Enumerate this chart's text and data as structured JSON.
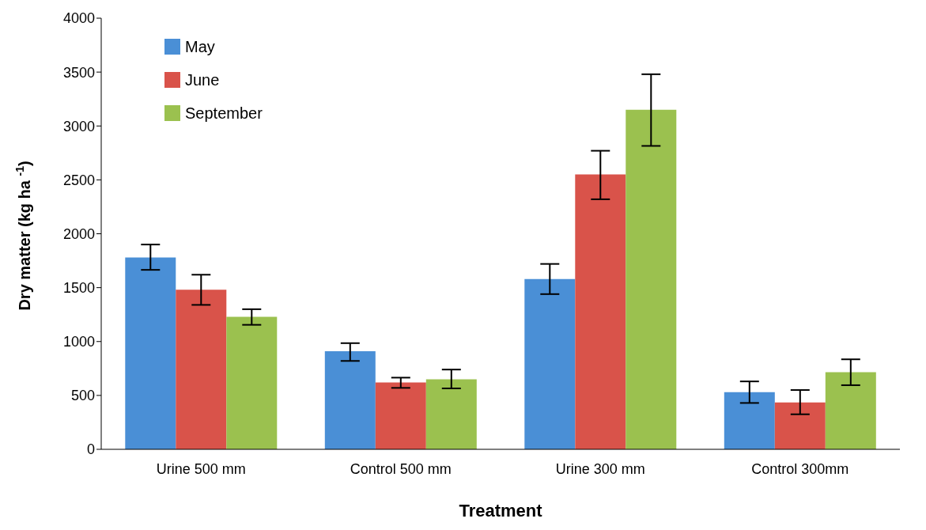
{
  "chart_data": {
    "type": "bar",
    "xlabel": "Treatment",
    "ylabel": "Dry matter (kg ha $^{-1}$)",
    "categories": [
      "Urine 500 mm",
      "Control 500 mm",
      "Urine 300 mm",
      "Control 300mm"
    ],
    "series": [
      {
        "name": "May",
        "color": "#4a8fd6",
        "values": [
          1780,
          910,
          1580,
          530
        ],
        "errors": [
          [
            1665,
            1900
          ],
          [
            820,
            985
          ],
          [
            1440,
            1720
          ],
          [
            430,
            630
          ]
        ]
      },
      {
        "name": "June",
        "color": "#d9534a",
        "values": [
          1480,
          620,
          2550,
          435
        ],
        "errors": [
          [
            1340,
            1620
          ],
          [
            570,
            665
          ],
          [
            2320,
            2770
          ],
          [
            325,
            550
          ]
        ]
      },
      {
        "name": "September",
        "color": "#9bc14f",
        "values": [
          1230,
          650,
          3150,
          715
        ],
        "errors": [
          [
            1155,
            1300
          ],
          [
            565,
            740
          ],
          [
            2815,
            3480
          ],
          [
            595,
            835
          ]
        ]
      }
    ],
    "ylim": [
      0,
      4000
    ],
    "yticks": [
      0,
      500,
      1000,
      1500,
      2000,
      2500,
      3000,
      3500,
      4000
    ],
    "grid": false,
    "legend": "top left"
  }
}
